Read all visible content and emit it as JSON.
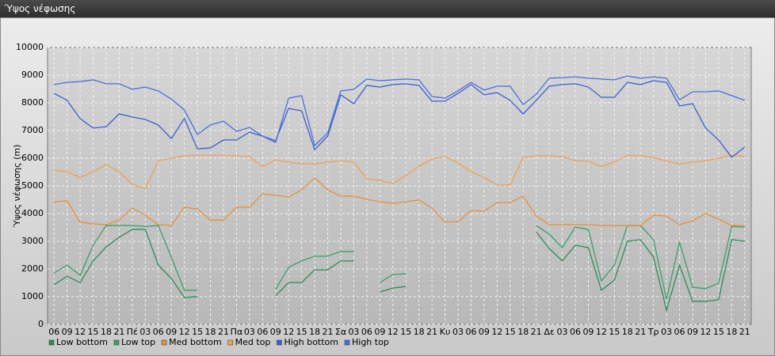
{
  "window_title": "Ύψος νέφωσης",
  "chart_data": {
    "type": "line",
    "y_label": "Ύψος νέφωσης (m)",
    "categories": [
      "06",
      "09",
      "12",
      "15",
      "18",
      "21",
      "Πέ",
      "03",
      "06",
      "09",
      "12",
      "15",
      "18",
      "21",
      "Πα",
      "03",
      "06",
      "09",
      "12",
      "15",
      "18",
      "21",
      "Σα",
      "03",
      "06",
      "09",
      "12",
      "15",
      "18",
      "21",
      "Κυ",
      "03",
      "06",
      "09",
      "12",
      "15",
      "18",
      "21",
      "Δε",
      "03",
      "06",
      "09",
      "12",
      "15",
      "18",
      "21",
      "Τρ",
      "03",
      "06",
      "09",
      "12",
      "15",
      "18",
      "21"
    ],
    "ylim": [
      0,
      10000
    ],
    "yticks": [
      0,
      1000,
      2000,
      3000,
      4000,
      5000,
      6000,
      7000,
      8000,
      9000,
      10000
    ],
    "grid": true,
    "series": [
      {
        "name": "Low bottom",
        "color": "#2e8b57",
        "values": [
          1430,
          1740,
          1510,
          2290,
          2800,
          3140,
          3430,
          3430,
          2140,
          1660,
          970,
          1000,
          null,
          null,
          null,
          null,
          null,
          1030,
          1510,
          1510,
          1970,
          1970,
          2290,
          2290,
          null,
          1170,
          1310,
          1370,
          null,
          null,
          null,
          null,
          null,
          null,
          null,
          null,
          null,
          3340,
          2740,
          2290,
          2860,
          2770,
          1230,
          1600,
          3000,
          3060,
          2430,
          510,
          2140,
          830,
          830,
          890,
          3060,
          3000
        ]
      },
      {
        "name": "Low top",
        "color": "#3aa06a",
        "values": [
          1860,
          2140,
          1770,
          2860,
          3570,
          3570,
          3570,
          3540,
          3570,
          2430,
          1230,
          1230,
          null,
          null,
          null,
          null,
          null,
          1260,
          2060,
          2290,
          2460,
          2460,
          2630,
          2630,
          null,
          1510,
          1800,
          1830,
          null,
          null,
          null,
          null,
          null,
          null,
          null,
          null,
          null,
          3570,
          3260,
          2770,
          3510,
          3430,
          1570,
          2140,
          3570,
          3570,
          3060,
          910,
          2970,
          1340,
          1290,
          1490,
          3540,
          3510
        ]
      },
      {
        "name": "Med bottom",
        "color": "#e8903a",
        "values": [
          4430,
          4460,
          3690,
          3630,
          3600,
          3770,
          4200,
          3940,
          3600,
          3570,
          4230,
          4170,
          3770,
          3770,
          4230,
          4230,
          4710,
          4660,
          4600,
          4860,
          5290,
          4860,
          4630,
          4630,
          4510,
          4430,
          4370,
          4430,
          4490,
          4200,
          3690,
          3710,
          4110,
          4090,
          4400,
          4400,
          4630,
          3910,
          3600,
          3600,
          3600,
          3600,
          3570,
          3570,
          3570,
          3570,
          3940,
          3910,
          3600,
          3740,
          4000,
          3800,
          3570,
          3570
        ]
      },
      {
        "name": "Med top",
        "color": "#f0a050",
        "values": [
          5570,
          5510,
          5310,
          5510,
          5770,
          5510,
          5060,
          4890,
          5910,
          6000,
          6090,
          6110,
          6110,
          6110,
          6090,
          6060,
          5690,
          5940,
          5860,
          5800,
          5800,
          5860,
          5910,
          5860,
          5260,
          5200,
          5090,
          5370,
          5710,
          5970,
          6060,
          5830,
          5510,
          5310,
          5030,
          5030,
          6030,
          6090,
          6090,
          6060,
          5910,
          5890,
          5690,
          5860,
          6110,
          6090,
          6030,
          5890,
          5800,
          5860,
          5910,
          6000,
          6110,
          6060
        ]
      },
      {
        "name": "High bottom",
        "color": "#3a5fd0",
        "values": [
          8340,
          8090,
          7430,
          7090,
          7140,
          7600,
          7490,
          7400,
          7200,
          6710,
          7430,
          6340,
          6370,
          6660,
          6660,
          6940,
          6800,
          6630,
          7800,
          7710,
          6310,
          6800,
          8290,
          7970,
          8630,
          8570,
          8660,
          8690,
          8630,
          8060,
          8060,
          8340,
          8660,
          8290,
          8370,
          8090,
          7600,
          8090,
          8600,
          8660,
          8690,
          8570,
          8200,
          8200,
          8740,
          8660,
          8800,
          8740,
          7890,
          7970,
          7090,
          6660,
          6030,
          6400
        ]
      },
      {
        "name": "High top",
        "color": "#4a6ee0",
        "values": [
          8660,
          8740,
          8770,
          8830,
          8690,
          8690,
          8490,
          8570,
          8430,
          8140,
          7740,
          6860,
          7200,
          7340,
          6970,
          7110,
          6800,
          6570,
          8170,
          8260,
          6460,
          6910,
          8430,
          8490,
          8860,
          8800,
          8830,
          8860,
          8830,
          8230,
          8170,
          8430,
          8740,
          8460,
          8600,
          8600,
          7940,
          8310,
          8890,
          8910,
          8940,
          8890,
          8860,
          8830,
          8970,
          8890,
          8940,
          8890,
          8110,
          8400,
          8400,
          8430,
          8260,
          8090
        ]
      }
    ]
  }
}
